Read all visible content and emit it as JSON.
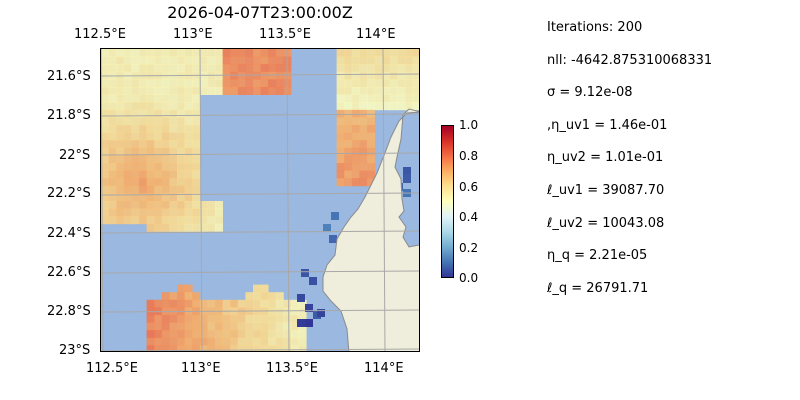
{
  "title": "2026-04-07T23:00:00Z",
  "map": {
    "lon_labels": [
      "112.5°E",
      "113°E",
      "113.5°E",
      "114°E"
    ],
    "lat_labels": [
      "21.6°S",
      "21.8°S",
      "22°S",
      "22.2°S",
      "22.4°S",
      "22.6°S",
      "22.8°S",
      "23°S"
    ],
    "colors": {
      "ocean": "#9ab8e0",
      "land": "#efeddb",
      "grid": "#a8a8a8"
    }
  },
  "colorbar": {
    "ticks": [
      "0.0",
      "0.2",
      "0.4",
      "0.6",
      "0.8",
      "1.0"
    ],
    "colormap": "RdYlBu_r"
  },
  "stats": [
    "Iterations: 200",
    "nll: -4642.875310068331",
    "σ = 9.12e-08",
    ",η_uv1 = 1.46e-01",
    "η_uv2 = 1.01e-01",
    "ℓ_uv1 = 39087.70",
    "ℓ_uv2 = 10043.08",
    "η_q = 2.21e-05",
    "ℓ_q = 26791.71"
  ]
}
